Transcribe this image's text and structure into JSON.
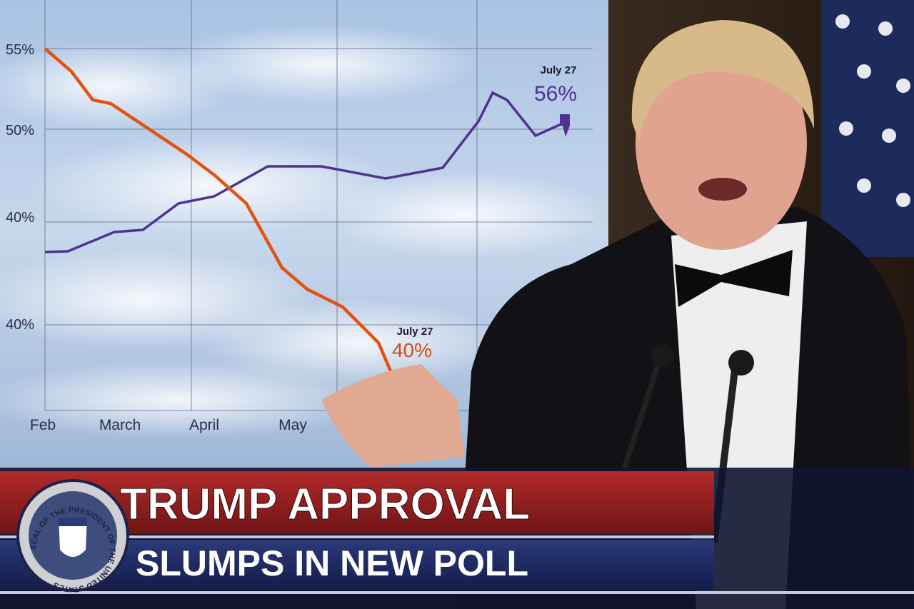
{
  "graphic": {
    "y_labels": [
      "55%",
      "50%",
      "40%",
      "40%"
    ],
    "x_labels": [
      "Feb",
      "March",
      "April",
      "May"
    ],
    "annotations": [
      {
        "date": "July 27",
        "value": "56%"
      },
      {
        "date": "July 27",
        "value": "40%"
      }
    ]
  },
  "banner": {
    "line1": "TRUMP APPROVAL",
    "line2": "SLUMPS IN NEW POLL"
  },
  "seal": {
    "text": "SEAL OF THE PRESIDENT OF THE UNITED STATES"
  }
}
